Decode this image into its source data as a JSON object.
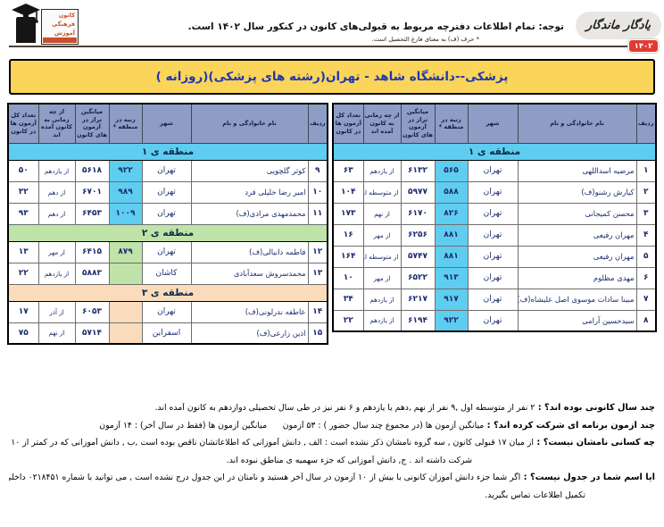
{
  "header": {
    "logo": {
      "l1": "کانون",
      "l2": "فرهنگی",
      "l3": "آموزش"
    },
    "notice_line1": "توجه: تمام اطلاعات دفترچه مربوط به قبولی‌های کانون در کنکور سال ۱۴۰۲ است.",
    "notice_line2": "* حرف (ف) به معنای فارغ التحصیل است.",
    "brand": "یادگار ماندگار",
    "year_badge": "۱۴۰۲"
  },
  "title_bar": {
    "text": "پزشکی--دانشگاه شاهد - تهران(رشته های پزشکی)(روزانه )"
  },
  "table_headers": [
    "ردیف",
    "نام خانوادگی و نام",
    "شهر",
    "رتبه در منطقه *",
    "میانگین تراز در آزمون های کانون",
    "از چه زمانی به کانون آمده اند",
    "تعداد کل آزمون ها در کانون"
  ],
  "right_table": {
    "sections": [
      {
        "label": "منطقه ی ۱",
        "theme": "c1",
        "rows": [
          {
            "no": "۱",
            "name": "مرضیه اسداللهی",
            "city": "تهران",
            "rank": "۵۶۵",
            "avg": "۶۱۳۲",
            "since": "از یازدهم",
            "total": "۶۳"
          },
          {
            "no": "۲",
            "name": "کیارش رشنو(ف)",
            "city": "تهران",
            "rank": "۵۸۸",
            "avg": "۵۹۷۷",
            "since": "از متوسطه اول",
            "total": "۱۰۴"
          },
          {
            "no": "۳",
            "name": "محسن کمیجانی",
            "city": "تهران",
            "rank": "۸۲۶",
            "avg": "۶۱۷۰",
            "since": "از نهم",
            "total": "۱۷۳"
          },
          {
            "no": "۴",
            "name": "مهران رفیعی",
            "city": "تهران",
            "rank": "۸۸۱",
            "avg": "۶۲۵۶",
            "since": "از مهر",
            "total": "۱۶"
          },
          {
            "no": "۵",
            "name": "مهران رفیعی",
            "city": "تهران",
            "rank": "۸۸۱",
            "avg": "۵۷۴۷",
            "since": "از متوسطه اول",
            "total": "۱۶۴"
          },
          {
            "no": "۶",
            "name": "مهدی مظلوم",
            "city": "تهران",
            "rank": "۹۱۳",
            "avg": "۶۵۲۲",
            "since": "از مهر",
            "total": "۱۰"
          },
          {
            "no": "۷",
            "name": "مبینا سادات موسوی اصل علیشاه(ف)",
            "city": "تهران",
            "rank": "۹۱۷",
            "avg": "۶۲۱۷",
            "since": "از یازدهم",
            "total": "۳۴"
          },
          {
            "no": "۸",
            "name": "سیدحسین آرامی",
            "city": "تهران",
            "rank": "۹۲۲",
            "avg": "۶۱۹۴",
            "since": "از یازدهم",
            "total": "۲۲"
          }
        ]
      }
    ]
  },
  "left_table": {
    "sections": [
      {
        "label": "منطقه ی ۱",
        "theme": "c1",
        "rows": [
          {
            "no": "۹",
            "name": "کوثر گلچویی",
            "city": "تهران",
            "rank": "۹۲۲",
            "avg": "۵۶۱۸",
            "since": "از یازدهم",
            "total": "۵۰"
          },
          {
            "no": "۱۰",
            "name": "امیر رضا خلیلی فرد",
            "city": "تهران",
            "rank": "۹۸۹",
            "avg": "۶۷۰۱",
            "since": "از دهم",
            "total": "۳۲"
          },
          {
            "no": "۱۱",
            "name": "محمدمهدی مرادی(ف)",
            "city": "تهران",
            "rank": "۱۰۰۹",
            "avg": "۶۴۵۳",
            "since": "از دهم",
            "total": "۹۳"
          }
        ]
      },
      {
        "label": "منطقه ی ۲",
        "theme": "c2",
        "rows": [
          {
            "no": "۱۲",
            "name": "فاطمه دانیالی(ف)",
            "city": "تهران",
            "rank": "۸۷۹",
            "avg": "۶۴۱۵",
            "since": "از مهر",
            "total": "۱۳"
          },
          {
            "no": "۱۳",
            "name": "محمدسروش سعدآبادی",
            "city": "کاشان",
            "rank": "",
            "avg": "۵۸۸۳",
            "since": "از یازدهم",
            "total": "۲۲"
          }
        ]
      },
      {
        "label": "منطقه ی ۳",
        "theme": "c3",
        "rows": [
          {
            "no": "۱۴",
            "name": "عاطفه ندرلونی(ف)",
            "city": "تهران",
            "rank": "",
            "avg": "۶۰۵۳",
            "since": "از آذر",
            "total": "۱۷"
          },
          {
            "no": "۱۵",
            "name": "اذین زارعی(ف)",
            "city": "اسفراین",
            "rank": "",
            "avg": "۵۷۱۴",
            "since": "از نهم",
            "total": "۷۵"
          }
        ]
      }
    ]
  },
  "footer": {
    "lines": [
      {
        "q": "چند سال کانونی بوده اند؟ :",
        "a": "۲ نفر از متوسطه اول ,۹ نفر از نهم ,دهم یا یازدهم و ۶ نفر نیز در طی سال تحصیلی دوازدهم به کانون آمده اند.",
        "indent": ""
      },
      {
        "q": "چند آزمون برنامه ای شرکت کرده اند؟ :",
        "a": "میانگین آزمون ها (در مجموع چند سال حضور ) : ۵۳ آزمون      میانگین آزمون ها (فقط در سال آخر) : ۱۴ آزمون",
        "indent": ""
      },
      {
        "q": "چه کسانی نامشان نیست؟ :",
        "a": "از میان ۱۷ قبولی کانون , سه گروه نامشان ذکر نشده است : الف , دانش آموزانی که اطلاعاتشان ناقص بوده است ,ب , دانش آموزانی که در کمتر از ۱۰ آزمون برنامه ای کانون",
        "indent": ""
      },
      {
        "q": "",
        "a": "شرکت داشته اند . ج, دانش آموزانی که جزء سهمیه ی مناطق نبوده اند.",
        "indent": "indent-a"
      },
      {
        "q": "آیا اسم شما در جدول نیست؟ :",
        "a": "اگر شما جزء دانش آموزان کانونی با بیش از ۱۰ آزمون در سال آخر هستید و نامتان در این جدول درج نشده است , می توانید با شماره ۰۲۱۸۴۵۱ داخلی ۳۲۰۵ واحد",
        "indent": ""
      },
      {
        "q": "",
        "a": "تکمیل اطلاعات تماس بگیرید.",
        "indent": "indent-b"
      }
    ]
  },
  "colors": {
    "title_bar_bg": "#fbd45a",
    "title_text": "#2038b0",
    "table_header_bg": "#8d9dc5",
    "region1": "#5ecdf0",
    "region2": "#bfe3a8",
    "region3": "#fadcbc",
    "year_badge_bg": "#e23a30",
    "logo_text": "#c8502e"
  }
}
